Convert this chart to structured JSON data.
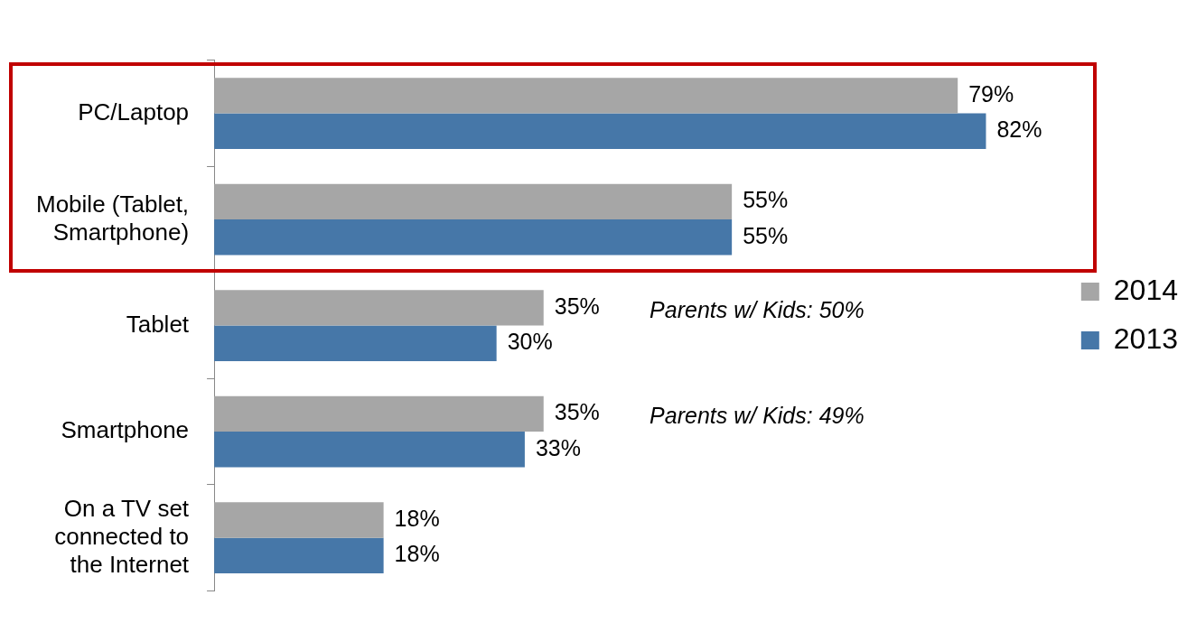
{
  "chart_data": {
    "type": "bar",
    "orientation": "horizontal",
    "categories": [
      "PC/Laptop",
      "Mobile (Tablet, Smartphone)",
      "Tablet",
      "Smartphone",
      "On a TV set connected to the Internet"
    ],
    "series": [
      {
        "name": "2014",
        "color": "#a6a6a6",
        "values": [
          79,
          55,
          35,
          35,
          18
        ],
        "value_labels": [
          "79%",
          "55%",
          "35%",
          "35%",
          "18%"
        ]
      },
      {
        "name": "2013",
        "color": "#4677a8",
        "values": [
          82,
          55,
          30,
          33,
          18
        ],
        "value_labels": [
          "82%",
          "55%",
          "30%",
          "33%",
          "18%"
        ]
      }
    ],
    "annotations": [
      "Parents w/ Kids: 50%",
      "Parents w/ Kids: 49%"
    ],
    "legend": "right",
    "grid": false,
    "tick_labels": "y"
  }
}
